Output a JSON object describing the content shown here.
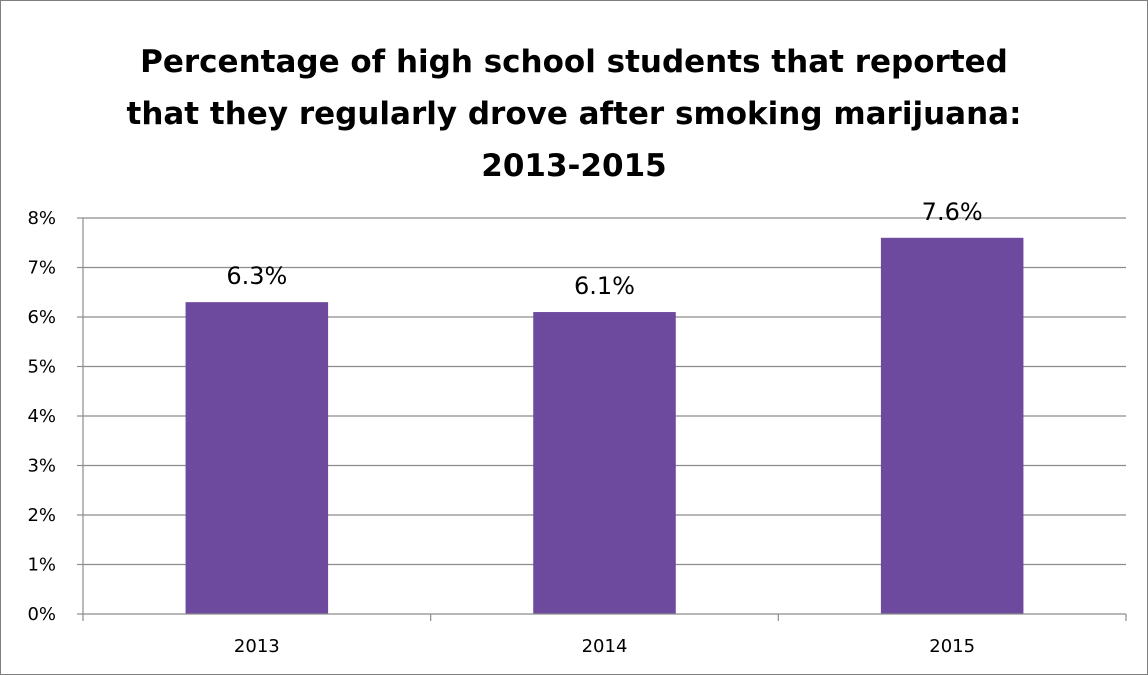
{
  "chart_data": {
    "type": "bar",
    "title_lines": [
      "Percentage of high school students that reported",
      "that they regularly drove after smoking marijuana:",
      "2013-2015"
    ],
    "categories": [
      "2013",
      "2014",
      "2015"
    ],
    "values": [
      6.3,
      6.1,
      7.6
    ],
    "data_labels": [
      "6.3%",
      "6.1%",
      "7.6%"
    ],
    "y_ticks": [
      "0%",
      "1%",
      "2%",
      "3%",
      "4%",
      "5%",
      "6%",
      "7%",
      "8%"
    ],
    "ylim": [
      0,
      8
    ],
    "grid": true,
    "legend": "none",
    "xlabel": "",
    "ylabel": "",
    "bar_color": "#6D4A9E",
    "grid_color": "#8C8C8C",
    "axis_color": "#8C8C8C",
    "border_color": "#7F7F7F"
  }
}
